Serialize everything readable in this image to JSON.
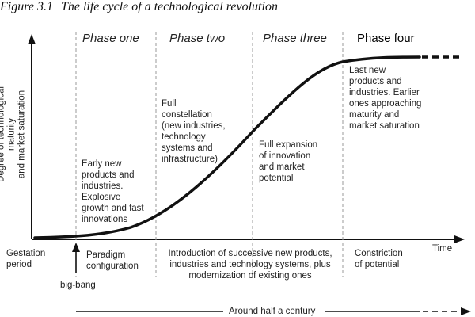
{
  "caption": {
    "figure_number": "Figure 3.1",
    "title": "The life cycle of a technological revolution"
  },
  "axes": {
    "y_label": "Degree of technological maturity\nand market saturation",
    "x_label": "Time"
  },
  "phases": [
    {
      "label": "Phase one",
      "description": "Early new\nproducts and\nindustries.\nExplosive\ngrowth and fast\ninnovations"
    },
    {
      "label": "Phase two",
      "description": "Full\nconstellation\n(new industries,\ntechnology\nsystems and\ninfrastructure)"
    },
    {
      "label": "Phase three",
      "description": "Full expansion\nof innovation\nand market\npotential"
    },
    {
      "label": "Phase four",
      "description": "Last new\nproducts and\nindustries. Earlier\nones approaching\nmaturity and\nmarket saturation"
    }
  ],
  "bottom": {
    "gestation": "Gestation\nperiod",
    "paradigm": "Paradigm\nconfiguration",
    "introduction": "Introduction of successive new products,\nindustries and technology systems, plus\nmodernization of existing ones",
    "constriction": "Constriction\nof potential",
    "big_bang": "big-bang",
    "duration": "Around half a century"
  },
  "colors": {
    "curve": "#111111",
    "dividers": "#9a9a9a",
    "text": "#222222"
  }
}
